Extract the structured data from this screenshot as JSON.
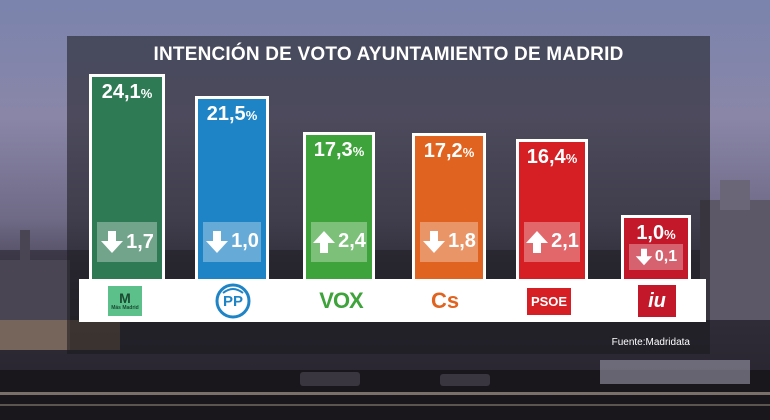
{
  "title": "INTENCIÓN DE VOTO AYUNTAMIENTO DE MADRID",
  "source": "Fuente:Madridata",
  "colors": {
    "mas_madrid": "#2e7a55",
    "pp": "#1e84c6",
    "vox": "#3ea33a",
    "cs": "#e06420",
    "psoe": "#d51f24",
    "iu": "#c2182a"
  },
  "chart_data": {
    "type": "bar",
    "title": "INTENCIÓN DE VOTO AYUNTAMIENTO DE MADRID",
    "categories": [
      "Más Madrid",
      "PP",
      "VOX",
      "Cs",
      "PSOE",
      "IU"
    ],
    "values": [
      24.1,
      21.5,
      17.3,
      17.2,
      16.4,
      1.0
    ],
    "value_labels": [
      "24,1",
      "21,5",
      "17,3",
      "17,2",
      "16,4",
      "1,0"
    ],
    "unit": "%",
    "changes": [
      {
        "direction": "down",
        "label": "1,7"
      },
      {
        "direction": "down",
        "label": "1,0"
      },
      {
        "direction": "up",
        "label": "2,4"
      },
      {
        "direction": "down",
        "label": "1,8"
      },
      {
        "direction": "up",
        "label": "2,1"
      },
      {
        "direction": "down",
        "label": "0,1"
      }
    ],
    "change_values": [
      -1.7,
      -1.0,
      2.4,
      -1.8,
      2.1,
      -0.1
    ]
  },
  "logos": [
    {
      "icon": "mas-madrid-logo",
      "text": "M",
      "subtext": "Más Madrid"
    },
    {
      "icon": "pp-logo",
      "text": "PP"
    },
    {
      "icon": "vox-logo",
      "text": "VOX"
    },
    {
      "icon": "cs-logo",
      "text": "Cs"
    },
    {
      "icon": "psoe-logo",
      "text": "PSOE"
    },
    {
      "icon": "iu-logo",
      "text": "iu"
    }
  ]
}
